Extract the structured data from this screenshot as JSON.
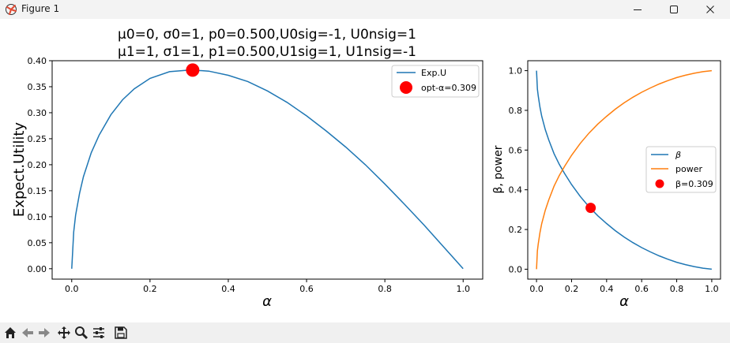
{
  "window": {
    "title": "Figure 1",
    "app_icon": "matplotlib-icon",
    "controls": [
      {
        "name": "minimize-button",
        "icon": "minimize-icon"
      },
      {
        "name": "maximize-button",
        "icon": "maximize-icon"
      },
      {
        "name": "close-button",
        "icon": "close-icon"
      }
    ]
  },
  "toolbar": {
    "buttons": [
      {
        "name": "home-button",
        "icon": "home-icon"
      },
      {
        "name": "back-button",
        "icon": "back-arrow-icon"
      },
      {
        "name": "forward-button",
        "icon": "forward-arrow-icon"
      },
      {
        "name": "pan-button",
        "icon": "move-icon"
      },
      {
        "name": "zoom-button",
        "icon": "magnifier-icon"
      },
      {
        "name": "configure-subplots-button",
        "icon": "sliders-icon"
      },
      {
        "name": "save-button",
        "icon": "floppy-disk-icon"
      }
    ]
  },
  "figure_title": {
    "line1": "μ0=0, σ0=1, p0=0.500,U0sig=-1, U0nsig=1",
    "line2": "μ1=1, σ1=1, p1=0.500,U1sig=1, U1nsig=-1"
  },
  "chart_data": [
    {
      "type": "line",
      "xlabel": "α",
      "ylabel": "Expect.Utility",
      "xlim": [
        -0.05,
        1.05
      ],
      "ylim": [
        -0.02,
        0.4
      ],
      "xticks": [
        "0.0",
        "0.2",
        "0.4",
        "0.6",
        "0.8",
        "1.0"
      ],
      "yticks": [
        "0.00",
        "0.05",
        "0.10",
        "0.15",
        "0.20",
        "0.25",
        "0.30",
        "0.35",
        "0.40"
      ],
      "grid": false,
      "legend_position": "top-right",
      "series": [
        {
          "name": "Exp.U",
          "color": "#1f77b4",
          "x": [
            0.0,
            0.005,
            0.01,
            0.02,
            0.03,
            0.05,
            0.07,
            0.1,
            0.13,
            0.16,
            0.2,
            0.25,
            0.3,
            0.309,
            0.35,
            0.4,
            0.45,
            0.5,
            0.55,
            0.6,
            0.65,
            0.7,
            0.75,
            0.8,
            0.85,
            0.9,
            0.95,
            0.98,
            1.0
          ],
          "y": [
            0.0,
            0.071,
            0.103,
            0.145,
            0.177,
            0.223,
            0.257,
            0.296,
            0.325,
            0.346,
            0.366,
            0.379,
            0.382,
            0.382,
            0.38,
            0.372,
            0.36,
            0.342,
            0.32,
            0.294,
            0.265,
            0.234,
            0.2,
            0.163,
            0.124,
            0.084,
            0.042,
            0.017,
            0.0
          ]
        }
      ],
      "markers": [
        {
          "name": "opt-α=0.309",
          "x": 0.309,
          "y": 0.382,
          "color": "#ff0000"
        }
      ]
    },
    {
      "type": "line",
      "xlabel": "α",
      "ylabel": "β, power",
      "xlim": [
        -0.05,
        1.05
      ],
      "ylim": [
        -0.05,
        1.05
      ],
      "xticks": [
        "0.0",
        "0.2",
        "0.4",
        "0.6",
        "0.8",
        "1.0"
      ],
      "yticks": [
        "0.0",
        "0.2",
        "0.4",
        "0.6",
        "0.8",
        "1.0"
      ],
      "grid": false,
      "legend_position": "center-right",
      "series": [
        {
          "name": "β",
          "color": "#1f77b4",
          "x": [
            0.0,
            0.005,
            0.01,
            0.02,
            0.03,
            0.05,
            0.07,
            0.1,
            0.13,
            0.16,
            0.2,
            0.25,
            0.3,
            0.35,
            0.4,
            0.45,
            0.5,
            0.55,
            0.6,
            0.65,
            0.7,
            0.75,
            0.8,
            0.85,
            0.9,
            0.95,
            0.98,
            1.0
          ],
          "y": [
            1.0,
            0.908,
            0.872,
            0.815,
            0.77,
            0.703,
            0.651,
            0.582,
            0.528,
            0.482,
            0.426,
            0.366,
            0.314,
            0.269,
            0.23,
            0.194,
            0.162,
            0.134,
            0.109,
            0.087,
            0.067,
            0.05,
            0.035,
            0.023,
            0.013,
            0.005,
            0.002,
            0.0
          ]
        },
        {
          "name": "power",
          "color": "#ff7f0e",
          "x": [
            0.0,
            0.005,
            0.01,
            0.02,
            0.03,
            0.05,
            0.07,
            0.1,
            0.13,
            0.16,
            0.2,
            0.25,
            0.3,
            0.35,
            0.4,
            0.45,
            0.5,
            0.55,
            0.6,
            0.65,
            0.7,
            0.75,
            0.8,
            0.85,
            0.9,
            0.95,
            0.98,
            1.0
          ],
          "y": [
            0.0,
            0.092,
            0.128,
            0.185,
            0.23,
            0.297,
            0.349,
            0.418,
            0.472,
            0.518,
            0.574,
            0.634,
            0.686,
            0.731,
            0.77,
            0.806,
            0.838,
            0.866,
            0.891,
            0.913,
            0.933,
            0.95,
            0.965,
            0.977,
            0.987,
            0.995,
            0.998,
            1.0
          ]
        }
      ],
      "markers": [
        {
          "name": "β=0.309",
          "x": 0.309,
          "y": 0.309,
          "color": "#ff0000"
        }
      ]
    }
  ]
}
